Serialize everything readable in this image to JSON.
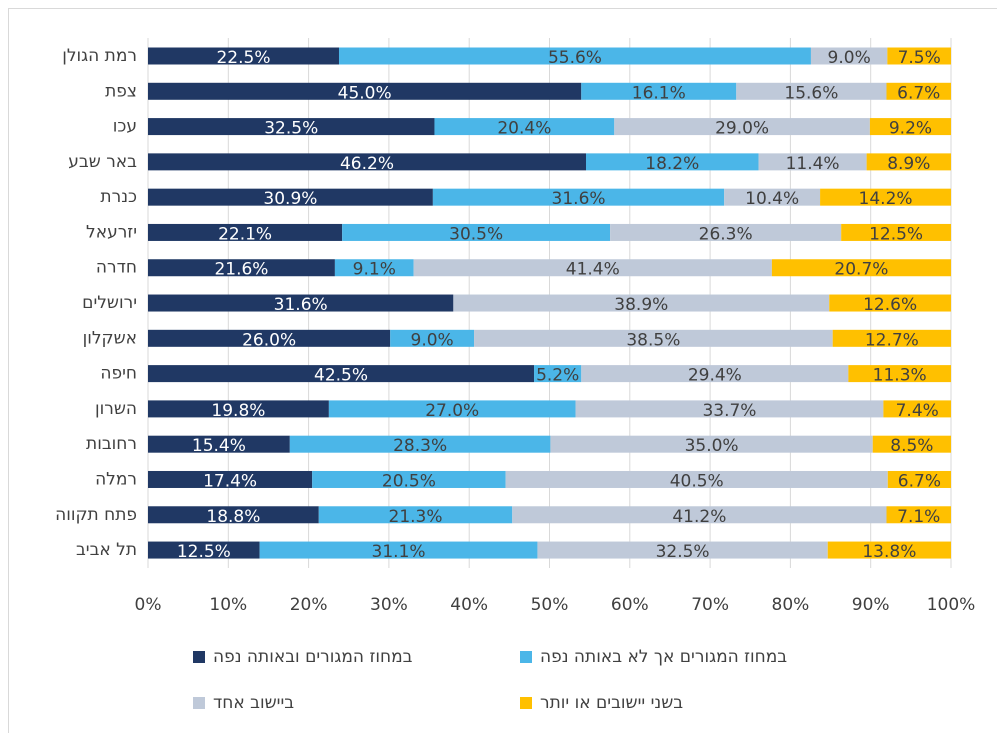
{
  "chart_data": {
    "type": "bar",
    "orientation": "horizontal",
    "stacking": "percent",
    "categories": [
      "רמת הגולן",
      "צפת",
      "עכו",
      "באר שבע",
      "כנרת",
      "יזרעאל",
      "חדרה",
      "ירושלים",
      "אשקלון",
      "חיפה",
      "השרון",
      "רחובות",
      "רמלה",
      "פתח תקווה",
      "תל אביב"
    ],
    "series": [
      {
        "name": "במחוז המגורים ובאותה נפה",
        "color": "#203864",
        "values": [
          22.5,
          45.0,
          32.5,
          46.2,
          30.9,
          22.1,
          21.6,
          31.6,
          26.0,
          42.5,
          19.8,
          15.4,
          17.4,
          18.8,
          12.5
        ],
        "value_labels": [
          "22.5%",
          "45.0%",
          "32.5%",
          "46.2%",
          "30.9%",
          "22.1%",
          "21.6%",
          "31.6%",
          "26.0%",
          "42.5%",
          "19.8%",
          "15.4%",
          "17.4%",
          "18.8%",
          "12.5%"
        ]
      },
      {
        "name": "במחוז המגורים אך לא באותה נפה",
        "color": "#4bb6e8",
        "values": [
          55.6,
          16.1,
          20.4,
          18.2,
          31.6,
          30.5,
          9.1,
          null,
          9.0,
          5.2,
          27.0,
          28.3,
          20.5,
          21.3,
          31.1
        ],
        "value_labels": [
          "55.6%",
          "16.1%",
          "20.4%",
          "18.2%",
          "31.6%",
          "30.5%",
          "9.1%",
          null,
          "9.0%",
          "5.2%",
          "27.0%",
          "28.3%",
          "20.5%",
          "21.3%",
          "31.1%"
        ]
      },
      {
        "name": "ביישוב אחד",
        "color": "#bfc9d9",
        "values": [
          9.0,
          15.6,
          29.0,
          11.4,
          10.4,
          26.3,
          41.4,
          38.9,
          38.5,
          29.4,
          33.7,
          35.0,
          40.5,
          41.2,
          32.5
        ],
        "value_labels": [
          "9.0%",
          "15.6%",
          "29.0%",
          "11.4%",
          "10.4%",
          "26.3%",
          "41.4%",
          "38.9%",
          "38.5%",
          "29.4%",
          "33.7%",
          "35.0%",
          "40.5%",
          "41.2%",
          "32.5%"
        ]
      },
      {
        "name": "בשני יישובים או יותר",
        "color": "#ffc000",
        "values": [
          7.5,
          6.7,
          9.2,
          8.9,
          14.2,
          12.5,
          20.7,
          12.6,
          12.7,
          11.3,
          7.4,
          8.5,
          6.7,
          7.1,
          13.8
        ],
        "value_labels": [
          "7.5%",
          "6.7%",
          "9.2%",
          "8.9%",
          "14.2%",
          "12.5%",
          "20.7%",
          "12.6%",
          "12.7%",
          "11.3%",
          "7.4%",
          "8.5%",
          "6.7%",
          "7.1%",
          "13.8%"
        ]
      }
    ],
    "xlim": [
      0,
      100
    ],
    "xticks": [
      {
        "value": 0,
        "label": "0%"
      },
      {
        "value": 10,
        "label": "10%"
      },
      {
        "value": 20,
        "label": "20%"
      },
      {
        "value": 30,
        "label": "30%"
      },
      {
        "value": 40,
        "label": "40%"
      },
      {
        "value": 50,
        "label": "50%"
      },
      {
        "value": 60,
        "label": "60%"
      },
      {
        "value": 70,
        "label": "70%"
      },
      {
        "value": 80,
        "label": "80%"
      },
      {
        "value": 90,
        "label": "90%"
      },
      {
        "value": 100,
        "label": "100%"
      }
    ],
    "grid": true,
    "legend": "bottom"
  }
}
